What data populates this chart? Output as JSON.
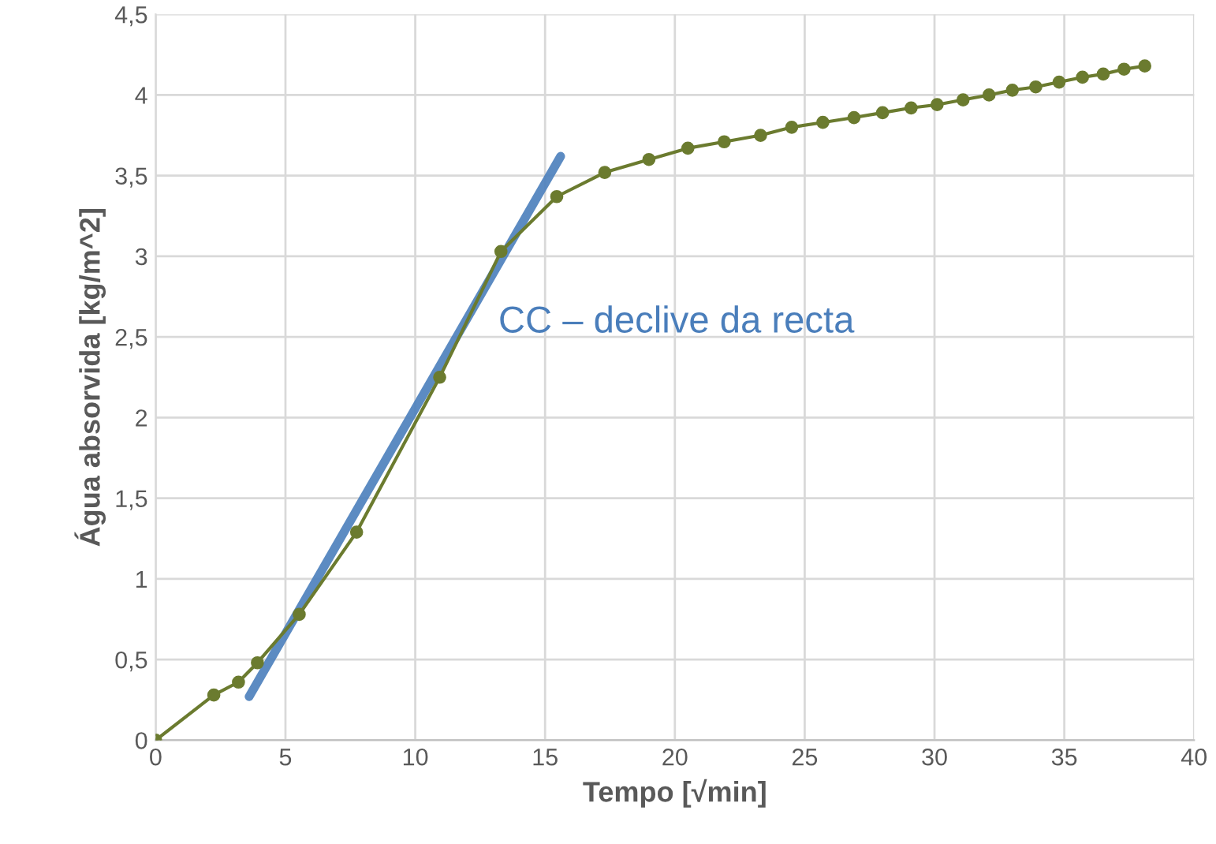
{
  "chart_data": {
    "type": "line",
    "xlabel": "Tempo [√min]",
    "ylabel": "Água absorvida [kg/m^2]",
    "annotations": [
      "CC – declive da recta"
    ],
    "xlim": [
      0,
      40
    ],
    "xticks": [
      0,
      5,
      10,
      15,
      20,
      25,
      30,
      35,
      40
    ],
    "ylim": [
      0,
      4.5
    ],
    "yticks": [
      0,
      {
        "value": 0.5,
        "label": "0,5"
      },
      1,
      {
        "value": 1.5,
        "label": "1,5"
      },
      2,
      {
        "value": 2.5,
        "label": "2,5"
      },
      3,
      {
        "value": 3.5,
        "label": "3,5"
      },
      4,
      {
        "value": 4.5,
        "label": "4,5"
      }
    ],
    "grid": true,
    "line_style": "solid",
    "series": [
      {
        "color": "#6b7b2f",
        "marker": "circle",
        "x": [
          0,
          2.24,
          3.19,
          3.92,
          5.53,
          7.74,
          10.94,
          13.3,
          15.45,
          17.3,
          19.0,
          20.5,
          21.9,
          23.3,
          24.5,
          25.7,
          26.9,
          28.0,
          29.1,
          30.1,
          31.1,
          32.1,
          33.0,
          33.9,
          34.8,
          35.7,
          36.5,
          37.3,
          38.1
        ],
        "values": [
          0,
          0.28,
          0.36,
          0.48,
          0.78,
          1.29,
          2.25,
          3.03,
          3.37,
          3.52,
          3.6,
          3.67,
          3.71,
          3.75,
          3.8,
          3.83,
          3.86,
          3.89,
          3.92,
          3.94,
          3.97,
          4.0,
          4.03,
          4.05,
          4.08,
          4.11,
          4.13,
          4.16,
          4.18
        ]
      },
      {
        "color": "#4a7ebb",
        "marker": "none",
        "x": [
          3.6,
          15.6
        ],
        "values": [
          0.27,
          3.62
        ]
      }
    ]
  }
}
